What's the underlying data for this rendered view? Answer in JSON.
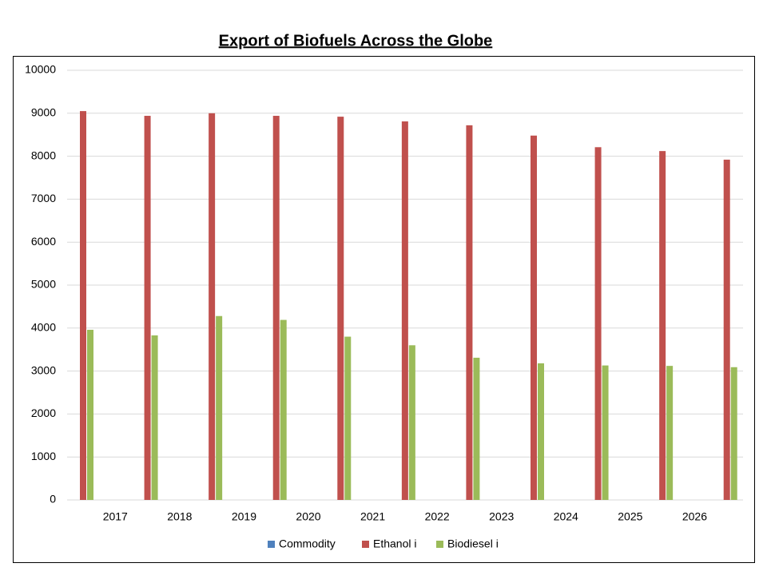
{
  "chart_data": {
    "type": "bar",
    "title": "Export of Biofuels Across the Globe",
    "categories": [
      "2017",
      "2018",
      "2019",
      "2020",
      "2021",
      "2022",
      "2023",
      "2024",
      "2025",
      "2026",
      null
    ],
    "series": [
      {
        "name": "Commodity",
        "color": "#4f81bd",
        "values": [
          null,
          null,
          null,
          null,
          null,
          null,
          null,
          null,
          null,
          null,
          null
        ]
      },
      {
        "name": "Ethanol i",
        "color": "#c0504d",
        "values": [
          9050,
          8940,
          9000,
          8940,
          8920,
          8810,
          8720,
          8480,
          8210,
          8120,
          7920
        ]
      },
      {
        "name": "Biodiesel i",
        "color": "#9bbb59",
        "values": [
          3960,
          3830,
          4280,
          4190,
          3800,
          3600,
          3310,
          3180,
          3130,
          3120,
          3090
        ]
      }
    ],
    "ylim": [
      0,
      10000
    ],
    "yticks": [
      0,
      1000,
      2000,
      3000,
      4000,
      5000,
      6000,
      7000,
      8000,
      9000,
      10000
    ],
    "grid": true,
    "legend": "bottom"
  }
}
